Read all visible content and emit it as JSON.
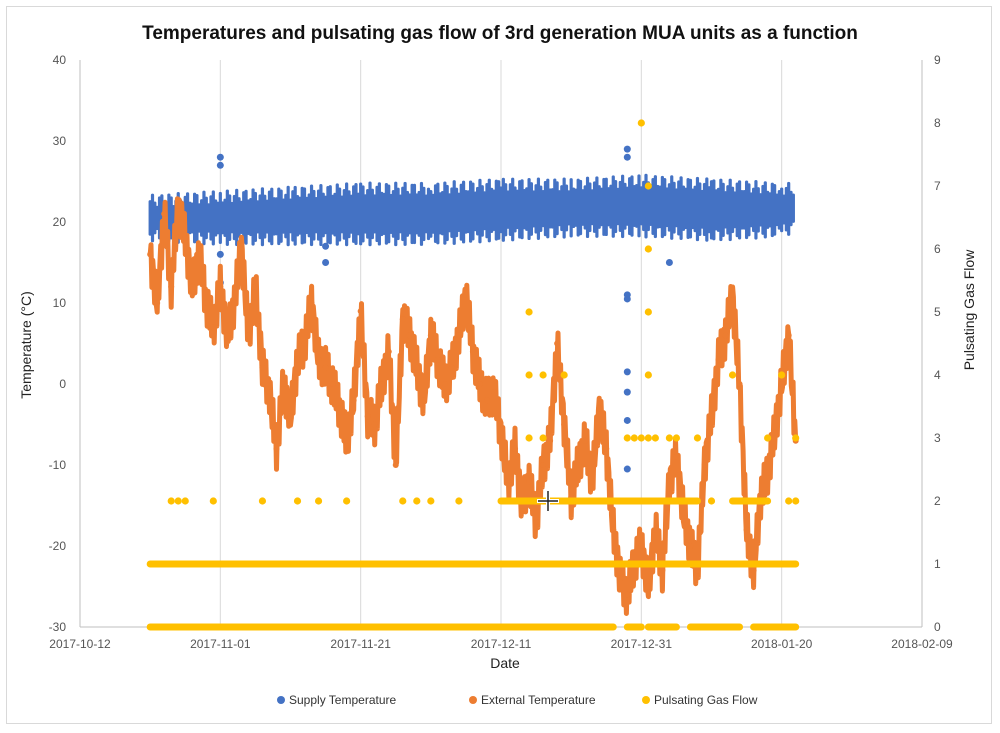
{
  "chart_data": {
    "type": "scatter",
    "title": "Temperatures and pulsating gas flow of 3rd generation MUA units as a function",
    "xlabel": "Date",
    "ylabel": "Temperature (°C)",
    "y2label": "Pulsating Gas Flow",
    "xlim": [
      "2017-10-12",
      "2018-02-09"
    ],
    "x_ticks": [
      "2017-10-12",
      "2017-11-01",
      "2017-11-21",
      "2017-12-11",
      "2017-12-31",
      "2018-01-20",
      "2018-02-09"
    ],
    "ylim": [
      -30,
      40
    ],
    "y_ticks": [
      "40",
      "30",
      "20",
      "10",
      "0",
      "-10",
      "-20",
      "-30"
    ],
    "y2lim": [
      0,
      9
    ],
    "y2_ticks": [
      "9",
      "8",
      "7",
      "6",
      "5",
      "4",
      "3",
      "2",
      "1",
      "0"
    ],
    "grid": "vertical",
    "legend_position": "bottom",
    "colors": {
      "supply": "#4472C4",
      "external": "#ED7D31",
      "gas": "#FFC000"
    },
    "series": [
      {
        "name": "Supply Temperature",
        "axis": "left",
        "band": [
          [
            "2017-10-22",
            18.5,
            22.5
          ],
          [
            "2017-11-01",
            18.0,
            23.0
          ],
          [
            "2017-11-11",
            18.0,
            23.5
          ],
          [
            "2017-11-21",
            18.0,
            24.0
          ],
          [
            "2017-12-01",
            18.0,
            24.0
          ],
          [
            "2017-12-11",
            18.5,
            24.5
          ],
          [
            "2017-12-21",
            19.0,
            24.5
          ],
          [
            "2017-12-31",
            19.0,
            25.0
          ],
          [
            "2018-01-10",
            18.5,
            24.5
          ],
          [
            "2018-01-20",
            19.0,
            24.0
          ],
          [
            "2018-01-22",
            19.5,
            24.0
          ]
        ],
        "outliers": [
          [
            "2017-11-01",
            28.0
          ],
          [
            "2017-11-01",
            27.0
          ],
          [
            "2017-11-01",
            12.5
          ],
          [
            "2017-11-01",
            16.0
          ],
          [
            "2017-11-16",
            17.0
          ],
          [
            "2017-11-16",
            15.0
          ],
          [
            "2017-12-29",
            29.0
          ],
          [
            "2017-12-29",
            28.0
          ],
          [
            "2017-12-29",
            11.0
          ],
          [
            "2017-12-29",
            10.5
          ],
          [
            "2017-12-29",
            1.5
          ],
          [
            "2017-12-29",
            -1.0
          ],
          [
            "2017-12-29",
            -4.5
          ],
          [
            "2017-12-29",
            -10.5
          ],
          [
            "2018-01-04",
            15.0
          ]
        ]
      },
      {
        "name": "External Temperature",
        "axis": "left",
        "points": [
          [
            "2017-10-22",
            16
          ],
          [
            "2017-10-23",
            10
          ],
          [
            "2017-10-24",
            21
          ],
          [
            "2017-10-25",
            12
          ],
          [
            "2017-10-26",
            22
          ],
          [
            "2017-10-27",
            18
          ],
          [
            "2017-10-28",
            12
          ],
          [
            "2017-10-29",
            16
          ],
          [
            "2017-10-30",
            10
          ],
          [
            "2017-10-31",
            7
          ],
          [
            "2017-11-01",
            12
          ],
          [
            "2017-11-02",
            6
          ],
          [
            "2017-11-03",
            10
          ],
          [
            "2017-11-04",
            17
          ],
          [
            "2017-11-05",
            6
          ],
          [
            "2017-11-06",
            12
          ],
          [
            "2017-11-07",
            2
          ],
          [
            "2017-11-08",
            -1
          ],
          [
            "2017-11-09",
            -8
          ],
          [
            "2017-11-10",
            0
          ],
          [
            "2017-11-11",
            -4
          ],
          [
            "2017-11-12",
            3
          ],
          [
            "2017-11-13",
            5
          ],
          [
            "2017-11-14",
            10
          ],
          [
            "2017-11-15",
            3
          ],
          [
            "2017-11-16",
            2
          ],
          [
            "2017-11-17",
            0
          ],
          [
            "2017-11-18",
            -3
          ],
          [
            "2017-11-19",
            -7
          ],
          [
            "2017-11-20",
            -2
          ],
          [
            "2017-11-21",
            9
          ],
          [
            "2017-11-22",
            -4
          ],
          [
            "2017-11-23",
            -5
          ],
          [
            "2017-11-24",
            0
          ],
          [
            "2017-11-25",
            4
          ],
          [
            "2017-11-26",
            -10
          ],
          [
            "2017-11-27",
            8
          ],
          [
            "2017-11-28",
            6
          ],
          [
            "2017-11-29",
            2
          ],
          [
            "2017-11-30",
            -2
          ],
          [
            "2017-12-01",
            6
          ],
          [
            "2017-12-02",
            3
          ],
          [
            "2017-12-03",
            0
          ],
          [
            "2017-12-04",
            2
          ],
          [
            "2017-12-05",
            6
          ],
          [
            "2017-12-06",
            11
          ],
          [
            "2017-12-07",
            4
          ],
          [
            "2017-12-08",
            0
          ],
          [
            "2017-12-09",
            -2
          ],
          [
            "2017-12-10",
            -1
          ],
          [
            "2017-12-11",
            -6
          ],
          [
            "2017-12-12",
            -12
          ],
          [
            "2017-12-13",
            -8
          ],
          [
            "2017-12-14",
            -15
          ],
          [
            "2017-12-15",
            -12
          ],
          [
            "2017-12-16",
            -17
          ],
          [
            "2017-12-17",
            -10
          ],
          [
            "2017-12-18",
            -7
          ],
          [
            "2017-12-19",
            5
          ],
          [
            "2017-12-20",
            -5
          ],
          [
            "2017-12-21",
            -14
          ],
          [
            "2017-12-22",
            -10
          ],
          [
            "2017-12-23",
            -7
          ],
          [
            "2017-12-24",
            -12
          ],
          [
            "2017-12-25",
            -3
          ],
          [
            "2017-12-26",
            -8
          ],
          [
            "2017-12-27",
            -18
          ],
          [
            "2017-12-28",
            -24
          ],
          [
            "2017-12-29",
            -26
          ],
          [
            "2017-12-30",
            -22
          ],
          [
            "2017-12-31",
            -20
          ],
          [
            "2018-01-01",
            -25
          ],
          [
            "2018-01-02",
            -18
          ],
          [
            "2018-01-03",
            -23
          ],
          [
            "2018-01-04",
            -12
          ],
          [
            "2018-01-05",
            -9
          ],
          [
            "2018-01-06",
            -16
          ],
          [
            "2018-01-07",
            -20
          ],
          [
            "2018-01-08",
            -23
          ],
          [
            "2018-01-09",
            -10
          ],
          [
            "2018-01-10",
            -4
          ],
          [
            "2018-01-11",
            3
          ],
          [
            "2018-01-12",
            6
          ],
          [
            "2018-01-13",
            11
          ],
          [
            "2018-01-14",
            0
          ],
          [
            "2018-01-15",
            -18
          ],
          [
            "2018-01-16",
            -23
          ],
          [
            "2018-01-17",
            -14
          ],
          [
            "2018-01-18",
            -11
          ],
          [
            "2018-01-19",
            -6
          ],
          [
            "2018-01-20",
            0
          ],
          [
            "2018-01-21",
            6
          ],
          [
            "2018-01-22",
            -7
          ]
        ]
      },
      {
        "name": "Pulsating Gas Flow",
        "axis": "right",
        "levels": [
          {
            "value": 0,
            "ranges": [
              [
                "2017-10-22",
                "2017-12-27"
              ],
              [
                "2017-12-29",
                "2017-12-31"
              ],
              [
                "2018-01-01",
                "2018-01-05"
              ],
              [
                "2018-01-07",
                "2018-01-14"
              ],
              [
                "2018-01-16",
                "2018-01-22"
              ]
            ]
          },
          {
            "value": 1,
            "ranges": [
              [
                "2017-10-22",
                "2018-01-22"
              ]
            ]
          },
          {
            "value": 2,
            "ranges": [
              [
                "2017-12-11",
                "2018-01-08"
              ],
              [
                "2018-01-13",
                "2018-01-18"
              ]
            ]
          }
        ],
        "points": [
          [
            "2017-10-25",
            2
          ],
          [
            "2017-10-26",
            2
          ],
          [
            "2017-10-27",
            2
          ],
          [
            "2017-10-31",
            2
          ],
          [
            "2017-11-07",
            2
          ],
          [
            "2017-11-12",
            2
          ],
          [
            "2017-11-15",
            2
          ],
          [
            "2017-11-19",
            2
          ],
          [
            "2017-11-27",
            2
          ],
          [
            "2017-11-29",
            2
          ],
          [
            "2017-12-01",
            2
          ],
          [
            "2017-12-05",
            2
          ],
          [
            "2017-12-15",
            5
          ],
          [
            "2017-12-15",
            4
          ],
          [
            "2017-12-17",
            4
          ],
          [
            "2017-12-15",
            3
          ],
          [
            "2017-12-17",
            3
          ],
          [
            "2017-12-20",
            4
          ],
          [
            "2017-12-29",
            3
          ],
          [
            "2017-12-30",
            3
          ],
          [
            "2017-12-31",
            3
          ],
          [
            "2018-01-01",
            3
          ],
          [
            "2018-01-02",
            3
          ],
          [
            "2017-12-31",
            8
          ],
          [
            "2018-01-01",
            7
          ],
          [
            "2018-01-01",
            6
          ],
          [
            "2018-01-01",
            5
          ],
          [
            "2018-01-01",
            4
          ],
          [
            "2018-01-04",
            3
          ],
          [
            "2018-01-05",
            3
          ],
          [
            "2018-01-08",
            3
          ],
          [
            "2018-01-13",
            4
          ],
          [
            "2018-01-18",
            3
          ],
          [
            "2018-01-20",
            4
          ],
          [
            "2018-01-22",
            3
          ],
          [
            "2018-01-21",
            2
          ],
          [
            "2018-01-22",
            2
          ],
          [
            "2018-01-10",
            2
          ]
        ]
      }
    ]
  }
}
